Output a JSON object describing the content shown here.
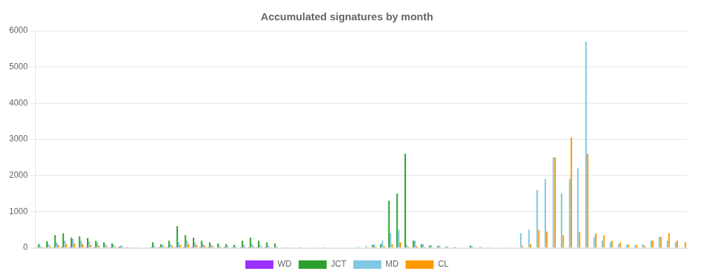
{
  "chart_data": {
    "type": "bar",
    "title": "Accumulated signatures by month",
    "categories": [
      null,
      null,
      null,
      null,
      null,
      null,
      null,
      null,
      null,
      null,
      null,
      null,
      null,
      null,
      null,
      null,
      null,
      null,
      null,
      null,
      null,
      null,
      null,
      null,
      null,
      null,
      null,
      null,
      null,
      null,
      null,
      null,
      null,
      null,
      null,
      null,
      null,
      null,
      null,
      null,
      null,
      null,
      null,
      null,
      null,
      null,
      null,
      null,
      null,
      null,
      null,
      null,
      null,
      null,
      null,
      null,
      null,
      null,
      null,
      null,
      null,
      null,
      null,
      null,
      null,
      null,
      null,
      null,
      null,
      null,
      null,
      null,
      null,
      null,
      null,
      null,
      null,
      null,
      null,
      null
    ],
    "series": [
      {
        "name": "WD",
        "color": "#9b30ff",
        "values": [
          5,
          3,
          2,
          1,
          2,
          3,
          2,
          1,
          0,
          1,
          2,
          1,
          0,
          0,
          2,
          1,
          1,
          2,
          1,
          2,
          1,
          1,
          0,
          1,
          2,
          1,
          2,
          1,
          1,
          0,
          0,
          0,
          0,
          0,
          0,
          0,
          0,
          0,
          0,
          0,
          0,
          0,
          0,
          0,
          0,
          0,
          0,
          0,
          0,
          0,
          0,
          0,
          0,
          0,
          0,
          0,
          0,
          0,
          0,
          0,
          0,
          0,
          0,
          0,
          0,
          0,
          0,
          0,
          0,
          0,
          0,
          0,
          0,
          0,
          0,
          0,
          0,
          0,
          0,
          0
        ]
      },
      {
        "name": "JCT",
        "color": "#2ca02c",
        "values": [
          100,
          180,
          350,
          400,
          280,
          320,
          270,
          200,
          150,
          120,
          50,
          10,
          5,
          0,
          150,
          100,
          200,
          600,
          350,
          280,
          200,
          150,
          120,
          100,
          80,
          200,
          280,
          200,
          150,
          120,
          0,
          5,
          5,
          0,
          0,
          5,
          0,
          0,
          0,
          0,
          0,
          80,
          100,
          1300,
          1500,
          2600,
          200,
          100,
          60,
          50,
          30,
          20,
          0,
          60,
          0,
          0,
          0,
          0,
          0,
          0,
          0,
          0,
          0,
          0,
          0,
          0,
          0,
          0,
          0,
          0,
          0,
          0,
          0,
          0,
          0,
          0,
          0,
          0,
          0,
          0
        ]
      },
      {
        "name": "MD",
        "color": "#7ec8e3",
        "values": [
          50,
          100,
          150,
          200,
          250,
          200,
          180,
          150,
          100,
          80,
          60,
          20,
          10,
          5,
          50,
          80,
          100,
          150,
          200,
          150,
          100,
          80,
          60,
          50,
          30,
          80,
          100,
          80,
          60,
          40,
          20,
          10,
          5,
          0,
          5,
          10,
          0,
          0,
          0,
          30,
          50,
          100,
          200,
          400,
          500,
          80,
          200,
          100,
          80,
          60,
          40,
          20,
          10,
          50,
          30,
          20,
          10,
          5,
          0,
          400,
          500,
          1600,
          1900,
          2500,
          1500,
          1900,
          2200,
          5700,
          300,
          200,
          150,
          100,
          80,
          60,
          100,
          200,
          300,
          200,
          150,
          0
        ]
      },
      {
        "name": "CL",
        "color": "#ff9900",
        "values": [
          20,
          50,
          80,
          100,
          120,
          100,
          80,
          60,
          40,
          30,
          20,
          5,
          0,
          0,
          20,
          40,
          60,
          80,
          100,
          80,
          60,
          40,
          20,
          10,
          5,
          20,
          40,
          30,
          20,
          10,
          5,
          0,
          0,
          0,
          0,
          0,
          0,
          0,
          0,
          10,
          20,
          30,
          50,
          100,
          150,
          30,
          50,
          20,
          10,
          5,
          0,
          0,
          0,
          10,
          5,
          0,
          0,
          0,
          0,
          50,
          100,
          500,
          450,
          2500,
          350,
          3050,
          430,
          2600,
          400,
          350,
          200,
          150,
          100,
          80,
          60,
          200,
          300,
          400,
          200,
          150
        ]
      }
    ],
    "ylim": [
      0,
      6000
    ],
    "yticks": [
      0,
      1000,
      2000,
      3000,
      4000,
      5000,
      6000
    ],
    "grid": true,
    "legend": "bottom",
    "tick_labels": "y"
  }
}
